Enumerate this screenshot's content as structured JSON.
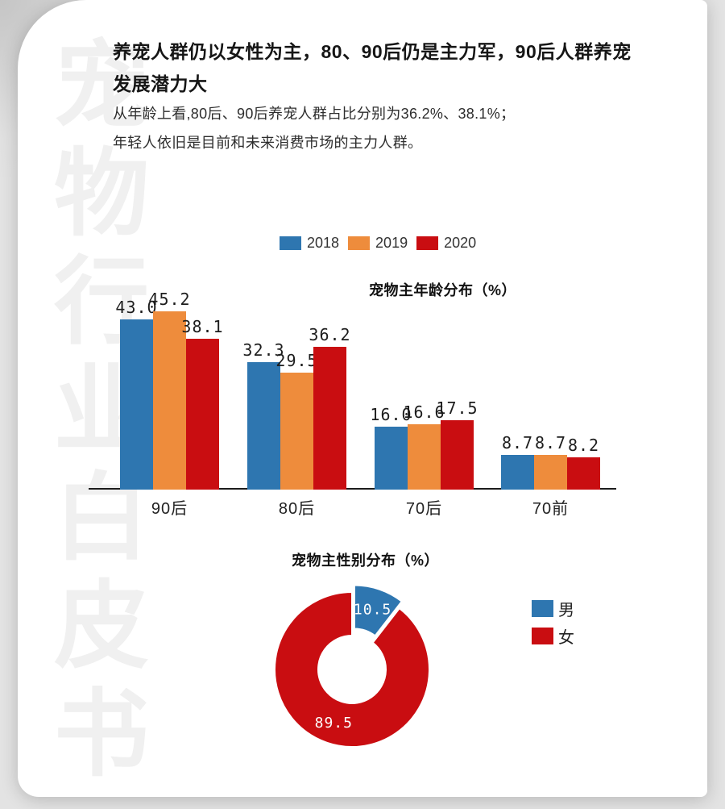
{
  "page": {
    "watermark": "宠物行业白皮书",
    "title": "养宠人群仍以女性为主，80、90后仍是主力军，90后人群养宠发展潜力大",
    "subtitle_line1": "从年龄上看,80后、90后养宠人群占比分别为36.2%、38.1%；",
    "subtitle_line2": "年轻人依旧是目前和未来消费市场的主力人群。"
  },
  "colors": {
    "blue": "#2e76b0",
    "orange": "#ee8c3c",
    "red": "#c90d11",
    "watermark_gray": "#f0f0f0",
    "axis": "#1c1c1c"
  },
  "chart_data": [
    {
      "type": "bar",
      "title": "宠物主年龄分布（%）",
      "categories": [
        "90后",
        "80后",
        "70后",
        "70前"
      ],
      "series": [
        {
          "name": "2018",
          "color": "#2e76b0",
          "values": [
            43.0,
            32.3,
            16.0,
            8.7
          ]
        },
        {
          "name": "2019",
          "color": "#ee8c3c",
          "values": [
            45.2,
            29.5,
            16.6,
            8.7
          ]
        },
        {
          "name": "2020",
          "color": "#c90d11",
          "values": [
            38.1,
            36.2,
            17.5,
            8.2
          ]
        }
      ],
      "ylim": [
        0,
        48
      ],
      "grid": false,
      "legend_position": "top",
      "value_labels": true
    },
    {
      "type": "pie",
      "title": "宠物主性别分布（%）",
      "donut": true,
      "slices": [
        {
          "name": "男",
          "value": 10.5,
          "color": "#2e76b0",
          "exploded": true
        },
        {
          "name": "女",
          "value": 89.5,
          "color": "#c90d11",
          "exploded": false
        }
      ],
      "legend_position": "right",
      "value_labels": true
    }
  ]
}
